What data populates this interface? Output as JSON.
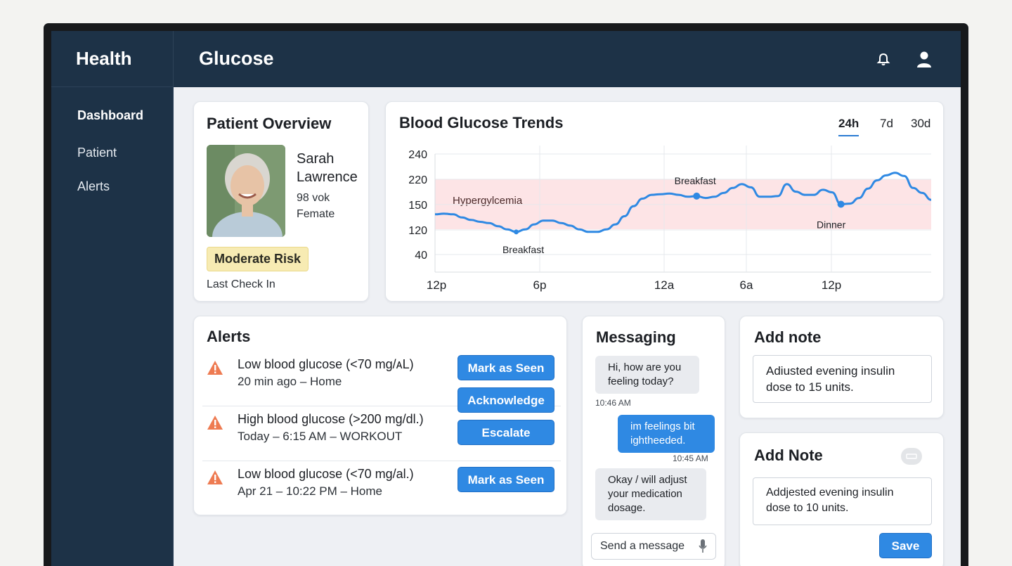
{
  "sidebar": {
    "brand": "Health",
    "items": [
      {
        "label": "Dashboard",
        "active": true
      },
      {
        "label": "Patient",
        "active": false
      },
      {
        "label": "Alerts",
        "active": false
      }
    ]
  },
  "header": {
    "title": "Glucose",
    "icons": [
      "bell-icon",
      "user-icon"
    ]
  },
  "patient": {
    "title": "Patient Overview",
    "name": "Sarah Lawrence",
    "age": "98 vok",
    "gender": "Femate",
    "risk": "Moderate Risk",
    "last_check": "Last Check In"
  },
  "trends": {
    "title": "Blood Glucose Trends",
    "ranges": [
      "24h",
      "7d",
      "30d"
    ],
    "active_range": "24h",
    "band_label": "Hypergylcemia",
    "annotations": [
      "Breakfast",
      "Breakfast",
      "Dinner"
    ]
  },
  "chart_data": {
    "type": "line",
    "y_ticks": [
      "240",
      "220",
      "150",
      "120",
      "40"
    ],
    "x_ticks": [
      "12p",
      "6p",
      "12a",
      "6a",
      "12p"
    ],
    "band": {
      "label": "Hypergylcemia",
      "color": "#fde4e6"
    },
    "line_color": "#2f89e3",
    "series": [
      {
        "y": [
          124,
          125,
          124,
          119,
          115,
          112,
          110,
          105,
          100,
          96,
          100,
          108,
          114,
          114,
          110,
          106,
          100,
          96,
          96,
          100,
          108,
          121,
          137,
          149,
          155,
          156,
          157,
          155,
          152,
          153,
          150,
          152,
          158,
          166,
          172,
          167,
          152,
          152,
          153,
          172,
          160,
          155,
          155,
          163,
          159,
          140,
          141,
          150,
          165,
          178,
          186,
          190,
          185,
          166,
          158,
          147
        ]
      }
    ],
    "markers": [
      {
        "index": 9,
        "label": "Breakfast"
      },
      {
        "index": 29,
        "label": "Breakfast"
      },
      {
        "index": 45,
        "label": "Dinner"
      }
    ]
  },
  "alerts": {
    "title": "Alerts",
    "items": [
      {
        "title": "Low blood glucose",
        "range": "(<70 mg/ᴀL)",
        "subtitle": "20 min ago – Home"
      },
      {
        "title": "High blood glucose",
        "range": "(>200 mg/dl.)",
        "subtitle": "Today – 6:15 AM – WORKOUT"
      },
      {
        "title": "Low blood glucose",
        "range": "(<70 mg/al.)",
        "subtitle": "Apr 21 – 10:22 PM – Home"
      }
    ],
    "buttons": {
      "mark_seen": "Mark as Seen",
      "acknowledge": "Acknowledge",
      "escalate": "Escalate",
      "mark_seen_2": "Mark as Seen"
    }
  },
  "messaging": {
    "title": "Messaging",
    "messages": [
      {
        "text": "Hi, how are you feeling today?",
        "time": "10:46 AM",
        "from": "in"
      },
      {
        "text": "im feelings bit ightheeded.",
        "time": "10:45 AM",
        "from": "out"
      },
      {
        "text": "Okay / will adjust your medication dosage.",
        "from": "in"
      }
    ],
    "placeholder": "Send a message"
  },
  "notes": [
    {
      "title": "Add note",
      "text": "Adiusted evening insulin dose to 15 units."
    },
    {
      "title": "Add Note",
      "text": "Addjested evening insulin dose to 10 units.",
      "save": "Save"
    }
  ]
}
